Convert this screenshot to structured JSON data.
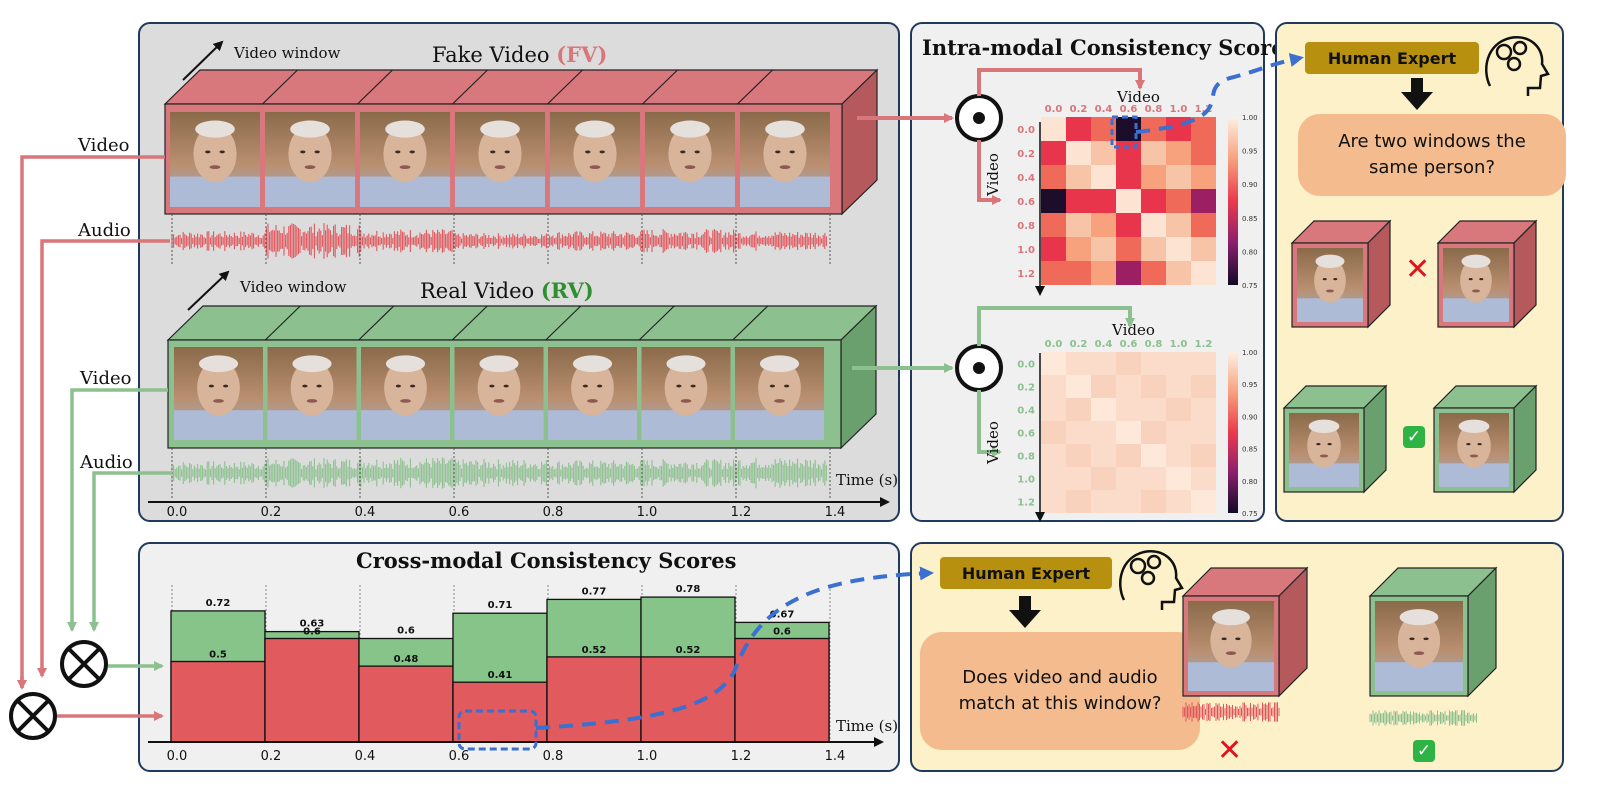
{
  "fake": {
    "window_label": "Video window",
    "title_main": "Fake Video ",
    "title_tag": "(FV)",
    "color": "#d9767a",
    "frame_count": 7
  },
  "real": {
    "window_label": "Video window",
    "title_main": "Real Video ",
    "title_tag": "(RV)",
    "color": "#8cc08f",
    "frame_count": 7
  },
  "left_labels": {
    "fake_video": "Video",
    "fake_audio": "Audio",
    "real_video": "Video",
    "real_audio": "Audio"
  },
  "time_axis": {
    "label": "Time (s)",
    "ticks": [
      "0.0",
      "0.2",
      "0.4",
      "0.6",
      "0.8",
      "1.0",
      "1.2",
      "1.4"
    ]
  },
  "intra": {
    "title": "Intra-modal Consistency Scores",
    "axis_label": "Video",
    "ticks": [
      "0.0",
      "0.2",
      "0.4",
      "0.6",
      "0.8",
      "1.0",
      "1.2"
    ],
    "colorbar_ticks": [
      "1.00",
      "0.95",
      "0.90",
      "0.85",
      "0.80",
      "0.75"
    ]
  },
  "intra_expert": {
    "label": "Human Expert",
    "question": "Are two windows the same person?"
  },
  "cross": {
    "title": "Cross-modal Consistency Scores",
    "time_label": "Time (s)",
    "ticks": [
      "0.0",
      "0.2",
      "0.4",
      "0.6",
      "0.8",
      "1.0",
      "1.2",
      "1.4"
    ]
  },
  "cross_expert": {
    "label": "Human Expert",
    "question": "Does video and audio match at this window?"
  },
  "colors": {
    "fake_red": "#d9767a",
    "real_green": "#8cc08f",
    "bar_red": "#e05a5e",
    "bar_green": "#86c489",
    "dash_blue": "#3b6fd0",
    "panel_border": "#1f3a5c"
  },
  "chart_data": {
    "type": "bar",
    "title": "Cross-modal Consistency Scores",
    "xlabel": "Time (s)",
    "categories": [
      "0.0-0.2",
      "0.2-0.4",
      "0.4-0.6",
      "0.6-0.8",
      "0.8-1.0",
      "1.0-1.2",
      "1.2-1.4"
    ],
    "series": [
      {
        "values": [
          0.72,
          0.63,
          0.6,
          0.71,
          0.77,
          0.78,
          0.67
        ]
      },
      {
        "values": [
          0.5,
          0.6,
          0.48,
          0.41,
          0.52,
          0.52,
          0.6
        ]
      }
    ],
    "ylim": [
      0,
      1
    ]
  }
}
